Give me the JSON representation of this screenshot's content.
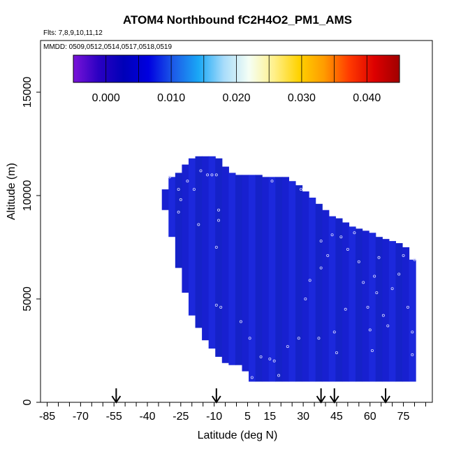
{
  "chart_data": {
    "type": "heatmap",
    "title": "ATOM4 Northbound fC2H4O2_PM1_AMS",
    "flights_label": "Flts: 7,8,9,10,11,12",
    "mmdd_label": "MMDD: 0509,0512,0514,0517,0518,0519",
    "xlabel": "Latitude (deg N)",
    "ylabel": "Altitude (m)",
    "xlim": [
      -88,
      88
    ],
    "ylim": [
      0,
      17500
    ],
    "x_ticks": [
      -85,
      -70,
      -55,
      -40,
      -25,
      -10,
      5,
      15,
      30,
      45,
      60,
      75
    ],
    "x_tick_labels": [
      "-85",
      "-70",
      "-55",
      "-40",
      "-25",
      "-10",
      "5",
      "15",
      "30",
      "45",
      "60",
      "75"
    ],
    "y_ticks": [
      0,
      5000,
      10000,
      15000
    ],
    "y_tick_labels": [
      "0",
      "5000",
      "10000",
      "15000"
    ],
    "colorbar": {
      "range": [
        -0.005,
        0.045
      ],
      "ticks": [
        0.0,
        0.01,
        0.02,
        0.03,
        0.04
      ],
      "tick_labels": [
        "0.000",
        "0.010",
        "0.020",
        "0.030",
        "0.040"
      ],
      "colors": [
        "#7a14d8",
        "#2b00c2",
        "#0000b8",
        "#0000e0",
        "#1c5ce8",
        "#1aa8f6",
        "#a8dcfa",
        "#f5fff5",
        "#fff08a",
        "#ffd200",
        "#ff9b00",
        "#ff3a00",
        "#dd0000",
        "#a00000"
      ]
    },
    "field_color": "#1a22d6",
    "field_columns": [
      {
        "lat": -32,
        "bottom": 9300,
        "top": 10300
      },
      {
        "lat": -29,
        "bottom": 8000,
        "top": 10900
      },
      {
        "lat": -26,
        "bottom": 6500,
        "top": 11100
      },
      {
        "lat": -23,
        "bottom": 5300,
        "top": 11500
      },
      {
        "lat": -20,
        "bottom": 4200,
        "top": 11800
      },
      {
        "lat": -17,
        "bottom": 3600,
        "top": 11900
      },
      {
        "lat": -14,
        "bottom": 3000,
        "top": 11900
      },
      {
        "lat": -11,
        "bottom": 2600,
        "top": 11900
      },
      {
        "lat": -8,
        "bottom": 2200,
        "top": 11800
      },
      {
        "lat": -5,
        "bottom": 1900,
        "top": 11400
      },
      {
        "lat": -2,
        "bottom": 1800,
        "top": 11100
      },
      {
        "lat": 1,
        "bottom": 1800,
        "top": 11000
      },
      {
        "lat": 4,
        "bottom": 1500,
        "top": 11000
      },
      {
        "lat": 7,
        "bottom": 1000,
        "top": 11000
      },
      {
        "lat": 10,
        "bottom": 1000,
        "top": 11000
      },
      {
        "lat": 13,
        "bottom": 1000,
        "top": 10900
      },
      {
        "lat": 16,
        "bottom": 1000,
        "top": 10900
      },
      {
        "lat": 19,
        "bottom": 1000,
        "top": 10900
      },
      {
        "lat": 22,
        "bottom": 1000,
        "top": 10900
      },
      {
        "lat": 25,
        "bottom": 1000,
        "top": 10700
      },
      {
        "lat": 28,
        "bottom": 1000,
        "top": 10500
      },
      {
        "lat": 31,
        "bottom": 1000,
        "top": 10200
      },
      {
        "lat": 34,
        "bottom": 1000,
        "top": 9900
      },
      {
        "lat": 37,
        "bottom": 1000,
        "top": 9600
      },
      {
        "lat": 40,
        "bottom": 1000,
        "top": 9300
      },
      {
        "lat": 43,
        "bottom": 1000,
        "top": 9000
      },
      {
        "lat": 46,
        "bottom": 1000,
        "top": 8900
      },
      {
        "lat": 49,
        "bottom": 1000,
        "top": 8700
      },
      {
        "lat": 52,
        "bottom": 1000,
        "top": 8500
      },
      {
        "lat": 55,
        "bottom": 1000,
        "top": 8400
      },
      {
        "lat": 58,
        "bottom": 1000,
        "top": 8300
      },
      {
        "lat": 61,
        "bottom": 1000,
        "top": 8200
      },
      {
        "lat": 64,
        "bottom": 1000,
        "top": 8000
      },
      {
        "lat": 67,
        "bottom": 1000,
        "top": 7900
      },
      {
        "lat": 70,
        "bottom": 1000,
        "top": 7800
      },
      {
        "lat": 73,
        "bottom": 1000,
        "top": 7700
      },
      {
        "lat": 76,
        "bottom": 1000,
        "top": 7500
      },
      {
        "lat": 79,
        "bottom": 1000,
        "top": 6900
      }
    ],
    "sample_points": [
      {
        "lat": -30,
        "alt": 10900
      },
      {
        "lat": -26,
        "alt": 10300
      },
      {
        "lat": -22,
        "alt": 10700
      },
      {
        "lat": -19,
        "alt": 10300
      },
      {
        "lat": -16,
        "alt": 11200
      },
      {
        "lat": -13,
        "alt": 11000
      },
      {
        "lat": -11,
        "alt": 11000
      },
      {
        "lat": -9,
        "alt": 11000
      },
      {
        "lat": -8,
        "alt": 9300
      },
      {
        "lat": -8,
        "alt": 8800
      },
      {
        "lat": -25,
        "alt": 9800
      },
      {
        "lat": -26,
        "alt": 9200
      },
      {
        "lat": -17,
        "alt": 8600
      },
      {
        "lat": -9,
        "alt": 7500
      },
      {
        "lat": -9,
        "alt": 4700
      },
      {
        "lat": -7,
        "alt": 4600
      },
      {
        "lat": 2,
        "alt": 3900
      },
      {
        "lat": 6,
        "alt": 3100
      },
      {
        "lat": 16,
        "alt": 10700
      },
      {
        "lat": 11,
        "alt": 2200
      },
      {
        "lat": 15,
        "alt": 2100
      },
      {
        "lat": 17,
        "alt": 2000
      },
      {
        "lat": 19,
        "alt": 1300
      },
      {
        "lat": 7,
        "alt": 1200
      },
      {
        "lat": 29,
        "alt": 10300
      },
      {
        "lat": 23,
        "alt": 2700
      },
      {
        "lat": 28,
        "alt": 3100
      },
      {
        "lat": 31,
        "alt": 5000
      },
      {
        "lat": 33,
        "alt": 5900
      },
      {
        "lat": 38,
        "alt": 7800
      },
      {
        "lat": 38,
        "alt": 6500
      },
      {
        "lat": 37,
        "alt": 3100
      },
      {
        "lat": 41,
        "alt": 7100
      },
      {
        "lat": 43,
        "alt": 8100
      },
      {
        "lat": 44,
        "alt": 3400
      },
      {
        "lat": 45,
        "alt": 2400
      },
      {
        "lat": 47,
        "alt": 8000
      },
      {
        "lat": 50,
        "alt": 7400
      },
      {
        "lat": 53,
        "alt": 8200
      },
      {
        "lat": 55,
        "alt": 6800
      },
      {
        "lat": 57,
        "alt": 5800
      },
      {
        "lat": 59,
        "alt": 4600
      },
      {
        "lat": 60,
        "alt": 3500
      },
      {
        "lat": 61,
        "alt": 2500
      },
      {
        "lat": 62,
        "alt": 6100
      },
      {
        "lat": 63,
        "alt": 5300
      },
      {
        "lat": 64,
        "alt": 7000
      },
      {
        "lat": 66,
        "alt": 4200
      },
      {
        "lat": 68,
        "alt": 3700
      },
      {
        "lat": 70,
        "alt": 5500
      },
      {
        "lat": 73,
        "alt": 6200
      },
      {
        "lat": 75,
        "alt": 7100
      },
      {
        "lat": 77,
        "alt": 4600
      },
      {
        "lat": 79,
        "alt": 3400
      },
      {
        "lat": 79,
        "alt": 2300
      },
      {
        "lat": 80,
        "alt": 6900
      },
      {
        "lat": 49,
        "alt": 4500
      }
    ],
    "arrows_lat": [
      -54,
      -9,
      38,
      44,
      67
    ]
  }
}
